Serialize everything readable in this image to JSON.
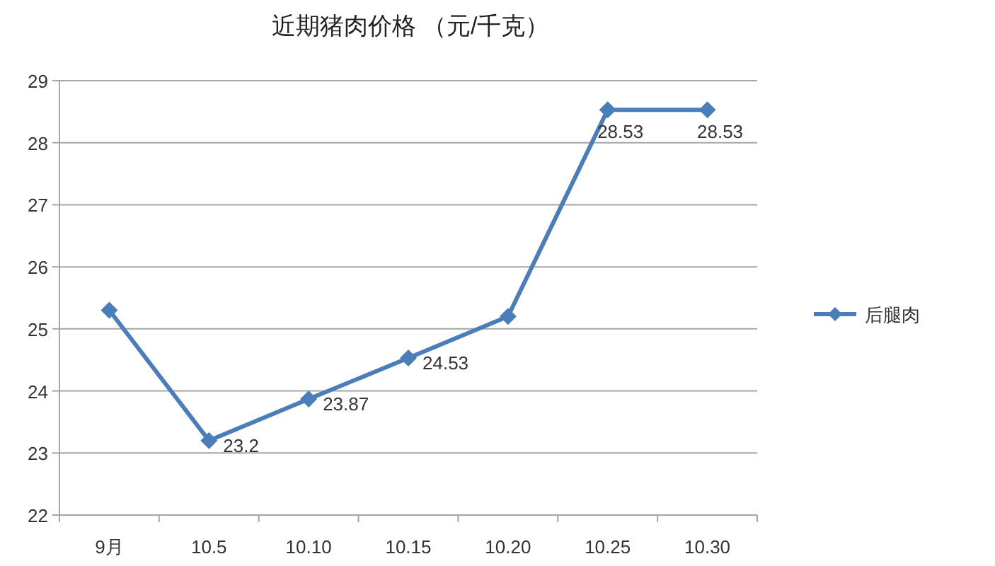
{
  "chart_data": {
    "type": "line",
    "title": "近期猪肉价格 （元/千克）",
    "categories": [
      "9月",
      "10.5",
      "10.10",
      "10.15",
      "10.20",
      "10.25",
      "10.30"
    ],
    "series": [
      {
        "name": "后腿肉",
        "color": "#4a7ebb",
        "values": [
          25.3,
          23.2,
          23.87,
          24.53,
          25.2,
          28.53,
          28.53
        ],
        "value_labels": [
          null,
          "23.2",
          "23.87",
          "24.53",
          null,
          "28.53",
          "28.53"
        ]
      }
    ],
    "ylim": [
      22,
      29
    ],
    "yticks": [
      22,
      23,
      24,
      25,
      26,
      27,
      28,
      29
    ],
    "grid": "y",
    "legend": "right",
    "marker": "diamond",
    "line_style": "solid"
  }
}
